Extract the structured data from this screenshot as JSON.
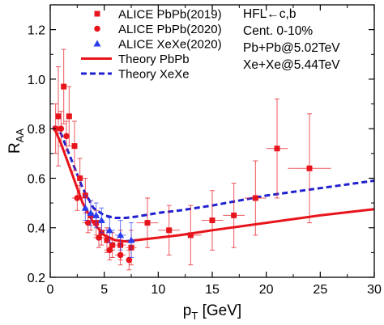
{
  "chart_data": {
    "type": "scatter",
    "xlabel": "p",
    "xlabel_sub": "T",
    "xlabel_unit": " [GeV]",
    "ylabel": "R",
    "ylabel_sub": "AA",
    "xlim": [
      0,
      30
    ],
    "ylim": [
      0.2,
      1.3
    ],
    "xticks": [
      0,
      5,
      10,
      15,
      20,
      25,
      30
    ],
    "yticks": [
      0.2,
      0.4,
      0.6,
      0.8,
      1.0,
      1.2
    ],
    "grid": false,
    "legend_position": "top-left",
    "annotations": [
      "HFL←c,b",
      "Cent. 0-10%",
      "Pb+Pb@5.02TeV",
      "Xe+Xe@5.44TeV"
    ],
    "series": [
      {
        "name": "ALICE PbPb(2019)",
        "kind": "points",
        "marker": "square",
        "color": "#e8141c",
        "points": [
          {
            "x": 0.75,
            "y": 0.85,
            "xerr": 0.25,
            "yerr": 0.2
          },
          {
            "x": 1.25,
            "y": 0.97,
            "xerr": 0.25,
            "yerr": 0.15
          },
          {
            "x": 1.75,
            "y": 0.85,
            "xerr": 0.25,
            "yerr": 0.12
          },
          {
            "x": 2.25,
            "y": 0.73,
            "xerr": 0.25,
            "yerr": 0.1
          },
          {
            "x": 2.75,
            "y": 0.6,
            "xerr": 0.25,
            "yerr": 0.08
          },
          {
            "x": 3.25,
            "y": 0.53,
            "xerr": 0.25,
            "yerr": 0.07
          },
          {
            "x": 3.75,
            "y": 0.45,
            "xerr": 0.25,
            "yerr": 0.06
          },
          {
            "x": 4.25,
            "y": 0.42,
            "xerr": 0.25,
            "yerr": 0.05
          },
          {
            "x": 4.75,
            "y": 0.38,
            "xerr": 0.25,
            "yerr": 0.05
          },
          {
            "x": 5.25,
            "y": 0.35,
            "xerr": 0.25,
            "yerr": 0.05
          },
          {
            "x": 5.75,
            "y": 0.33,
            "xerr": 0.25,
            "yerr": 0.05
          },
          {
            "x": 6.5,
            "y": 0.33,
            "xerr": 0.5,
            "yerr": 0.06
          },
          {
            "x": 7.5,
            "y": 0.32,
            "xerr": 0.5,
            "yerr": 0.07
          },
          {
            "x": 9,
            "y": 0.42,
            "xerr": 1,
            "yerr": 0.1
          },
          {
            "x": 11,
            "y": 0.39,
            "xerr": 1,
            "yerr": 0.1
          },
          {
            "x": 13,
            "y": 0.37,
            "xerr": 1,
            "yerr": 0.12
          },
          {
            "x": 15,
            "y": 0.43,
            "xerr": 1,
            "yerr": 0.12
          },
          {
            "x": 17,
            "y": 0.45,
            "xerr": 1,
            "yerr": 0.13
          },
          {
            "x": 19,
            "y": 0.52,
            "xerr": 1,
            "yerr": 0.15
          },
          {
            "x": 21,
            "y": 0.72,
            "xerr": 1,
            "yerr": 0.2
          },
          {
            "x": 24,
            "y": 0.64,
            "xerr": 2,
            "yerr": 0.22
          }
        ]
      },
      {
        "name": "ALICE PbPb(2020)",
        "kind": "points",
        "marker": "circle",
        "color": "#e8141c",
        "points": [
          {
            "x": 0.5,
            "y": 0.8,
            "xerr": 0.25,
            "yerr": 0.1
          },
          {
            "x": 1.0,
            "y": 0.8,
            "xerr": 0.25,
            "yerr": 0.07
          },
          {
            "x": 1.5,
            "y": 0.77,
            "xerr": 0.25,
            "yerr": 0.06
          },
          {
            "x": 2.5,
            "y": 0.52,
            "xerr": 0.5,
            "yerr": 0.05
          },
          {
            "x": 3.5,
            "y": 0.42,
            "xerr": 0.5,
            "yerr": 0.04
          },
          {
            "x": 4.5,
            "y": 0.36,
            "xerr": 0.5,
            "yerr": 0.04
          },
          {
            "x": 5.5,
            "y": 0.31,
            "xerr": 0.5,
            "yerr": 0.04
          },
          {
            "x": 6.5,
            "y": 0.29,
            "xerr": 0.5,
            "yerr": 0.04
          },
          {
            "x": 7.3,
            "y": 0.27,
            "xerr": 0.3,
            "yerr": 0.04
          }
        ]
      },
      {
        "name": "ALICE XeXe(2020)",
        "kind": "points",
        "marker": "triangle",
        "color": "#2a3cf0",
        "points": [
          {
            "x": 3.25,
            "y": 0.48,
            "xerr": 0.25,
            "yerr": 0.05
          },
          {
            "x": 3.75,
            "y": 0.46,
            "xerr": 0.25,
            "yerr": 0.05
          },
          {
            "x": 4.25,
            "y": 0.45,
            "xerr": 0.25,
            "yerr": 0.05
          },
          {
            "x": 4.75,
            "y": 0.43,
            "xerr": 0.25,
            "yerr": 0.05
          },
          {
            "x": 5.5,
            "y": 0.39,
            "xerr": 0.5,
            "yerr": 0.05
          },
          {
            "x": 6.5,
            "y": 0.37,
            "xerr": 0.5,
            "yerr": 0.06
          },
          {
            "x": 7.5,
            "y": 0.35,
            "xerr": 0.5,
            "yerr": 0.07
          }
        ]
      },
      {
        "name": "Theory PbPb",
        "kind": "line",
        "style": "solid",
        "color": "#e8141c",
        "points": [
          {
            "x": 0.3,
            "y": 0.81
          },
          {
            "x": 1,
            "y": 0.74
          },
          {
            "x": 2,
            "y": 0.62
          },
          {
            "x": 3,
            "y": 0.5
          },
          {
            "x": 4,
            "y": 0.42
          },
          {
            "x": 5,
            "y": 0.37
          },
          {
            "x": 6,
            "y": 0.35
          },
          {
            "x": 7,
            "y": 0.345
          },
          {
            "x": 8,
            "y": 0.35
          },
          {
            "x": 10,
            "y": 0.36
          },
          {
            "x": 12,
            "y": 0.37
          },
          {
            "x": 15,
            "y": 0.39
          },
          {
            "x": 20,
            "y": 0.42
          },
          {
            "x": 25,
            "y": 0.45
          },
          {
            "x": 30,
            "y": 0.475
          }
        ]
      },
      {
        "name": "Theory XeXe",
        "kind": "line",
        "style": "dashed",
        "color": "#2020d0",
        "points": [
          {
            "x": 0.3,
            "y": 0.81
          },
          {
            "x": 1,
            "y": 0.78
          },
          {
            "x": 2,
            "y": 0.67
          },
          {
            "x": 3,
            "y": 0.56
          },
          {
            "x": 4,
            "y": 0.48
          },
          {
            "x": 5,
            "y": 0.45
          },
          {
            "x": 6,
            "y": 0.44
          },
          {
            "x": 7,
            "y": 0.44
          },
          {
            "x": 8,
            "y": 0.445
          },
          {
            "x": 10,
            "y": 0.46
          },
          {
            "x": 12,
            "y": 0.47
          },
          {
            "x": 15,
            "y": 0.49
          },
          {
            "x": 20,
            "y": 0.53
          },
          {
            "x": 25,
            "y": 0.56
          },
          {
            "x": 30,
            "y": 0.59
          }
        ]
      }
    ]
  }
}
